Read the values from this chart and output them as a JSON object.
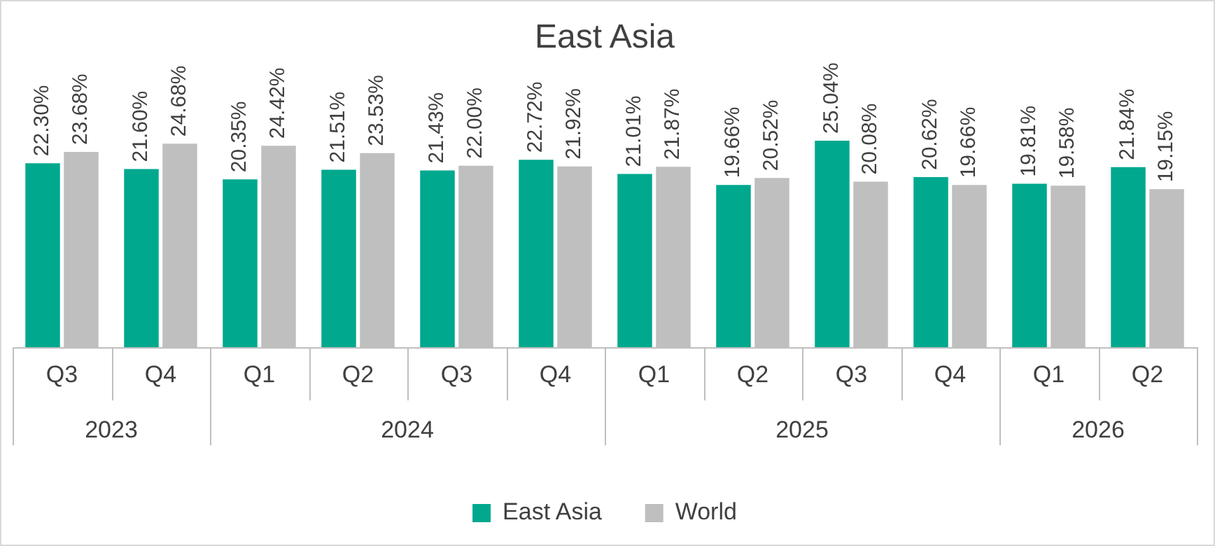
{
  "chart_data": {
    "type": "bar",
    "title": "East Asia",
    "categories": [
      "Q3",
      "Q4",
      "Q1",
      "Q2",
      "Q3",
      "Q4",
      "Q1",
      "Q2",
      "Q3",
      "Q4",
      "Q1",
      "Q2"
    ],
    "series": [
      {
        "name": "East Asia",
        "color": "#00a88e",
        "values": [
          22.3,
          21.6,
          20.35,
          21.51,
          21.43,
          22.72,
          21.01,
          19.66,
          25.04,
          20.62,
          19.81,
          21.84
        ],
        "value_labels": [
          "22.30%",
          "21.60%",
          "20.35%",
          "21.51%",
          "21.43%",
          "22.72%",
          "21.01%",
          "19.66%",
          "25.04%",
          "20.62%",
          "19.81%",
          "21.84%"
        ]
      },
      {
        "name": "World",
        "color": "#bfbfbf",
        "values": [
          23.68,
          24.68,
          24.42,
          23.53,
          22.0,
          21.92,
          21.87,
          20.52,
          20.08,
          19.66,
          19.58,
          19.15
        ],
        "value_labels": [
          "23.68%",
          "24.68%",
          "24.42%",
          "23.53%",
          "22.00%",
          "21.92%",
          "21.87%",
          "20.52%",
          "20.08%",
          "19.66%",
          "19.58%",
          "19.15%"
        ]
      }
    ],
    "annotations": [
      "2023",
      "2024",
      "2025",
      "2026"
    ],
    "tick_labels": "x",
    "grid": false,
    "legend": "bottom"
  }
}
